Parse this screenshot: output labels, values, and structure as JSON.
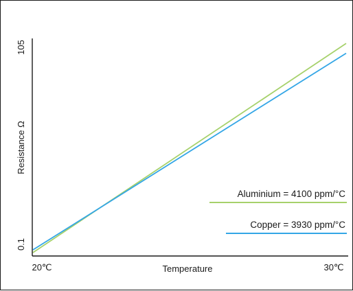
{
  "chart_data": {
    "type": "line",
    "title": "",
    "xlabel": "Temperature",
    "ylabel": "Resistance Ω",
    "x_tick_labels": [
      "20℃",
      "30℃"
    ],
    "y_tick_labels": [
      "0.1",
      "105"
    ],
    "xlim": [
      20,
      30
    ],
    "ylim": [
      0.1,
      105
    ],
    "grid": false,
    "legend_placement": "right",
    "series": [
      {
        "name": "Aluminium = 4100 ppm/°C",
        "color": "#a6d16b",
        "x": [
          20,
          30
        ],
        "y": [
          0.1,
          107
        ]
      },
      {
        "name": "Copper = 3930 ppm/°C",
        "color": "#33a6e6",
        "x": [
          20,
          30
        ],
        "y": [
          1.5,
          102
        ]
      }
    ]
  }
}
